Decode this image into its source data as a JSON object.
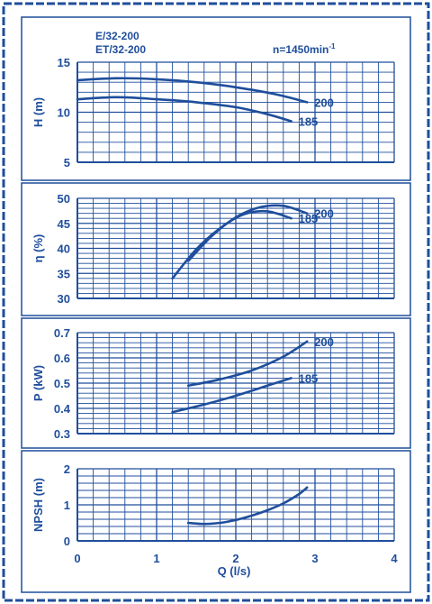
{
  "header": {
    "model_line1": "E/32-200",
    "model_line2": "ET/32-200",
    "speed": "n=1450min",
    "speed_exp": "-1"
  },
  "colors": {
    "ink": "#1f4e9c",
    "background": "#ffffff"
  },
  "x_axis": {
    "label": "Q (l/s)",
    "range": [
      0,
      4
    ],
    "ticks": [
      "0",
      "1",
      "2",
      "3",
      "4"
    ]
  },
  "chart_data": [
    {
      "type": "line",
      "ylabel": "H (m)",
      "xlim": [
        0,
        4
      ],
      "ylim": [
        5,
        15
      ],
      "yticks": [
        "5",
        "10",
        "15"
      ],
      "grid": true,
      "series": [
        {
          "name": "200",
          "x": [
            0,
            0.5,
            1.0,
            1.5,
            2.0,
            2.5,
            2.9
          ],
          "y": [
            13.2,
            13.4,
            13.3,
            13.0,
            12.5,
            11.8,
            11.0
          ]
        },
        {
          "name": "185",
          "x": [
            0,
            0.5,
            1.0,
            1.5,
            2.0,
            2.4,
            2.7
          ],
          "y": [
            11.3,
            11.5,
            11.3,
            11.0,
            10.5,
            9.8,
            9.1
          ]
        }
      ]
    },
    {
      "type": "line",
      "ylabel": "η (%)",
      "xlim": [
        0,
        4
      ],
      "ylim": [
        30,
        50
      ],
      "yticks": [
        "30",
        "35",
        "40",
        "45",
        "50"
      ],
      "grid": true,
      "series": [
        {
          "name": "200",
          "x": [
            1.4,
            1.7,
            2.0,
            2.3,
            2.6,
            2.9
          ],
          "y": [
            37.5,
            42.5,
            46.2,
            48.2,
            48.5,
            47.0
          ]
        },
        {
          "name": "185",
          "x": [
            1.2,
            1.5,
            1.8,
            2.1,
            2.4,
            2.7
          ],
          "y": [
            34.0,
            39.8,
            44.0,
            46.8,
            47.4,
            46.0
          ]
        }
      ]
    },
    {
      "type": "line",
      "ylabel": "P (kW)",
      "xlim": [
        0,
        4
      ],
      "ylim": [
        0.3,
        0.7
      ],
      "yticks": [
        "0.3",
        "0.4",
        "0.5",
        "0.6",
        "0.7"
      ],
      "grid": true,
      "series": [
        {
          "name": "200",
          "x": [
            1.4,
            1.8,
            2.2,
            2.6,
            2.9
          ],
          "y": [
            0.49,
            0.515,
            0.55,
            0.605,
            0.665
          ]
        },
        {
          "name": "185",
          "x": [
            1.2,
            1.6,
            2.0,
            2.4,
            2.7
          ],
          "y": [
            0.385,
            0.415,
            0.45,
            0.49,
            0.52
          ]
        }
      ]
    },
    {
      "type": "line",
      "ylabel": "NPSH (m)",
      "xlim": [
        0,
        4
      ],
      "ylim": [
        0,
        2
      ],
      "yticks": [
        "0",
        "1",
        "2"
      ],
      "grid": true,
      "series": [
        {
          "x": [
            1.4,
            1.6,
            1.8,
            2.0,
            2.2,
            2.4,
            2.6,
            2.8,
            2.9
          ],
          "y": [
            0.5,
            0.47,
            0.5,
            0.58,
            0.7,
            0.85,
            1.04,
            1.3,
            1.48
          ]
        }
      ]
    }
  ]
}
